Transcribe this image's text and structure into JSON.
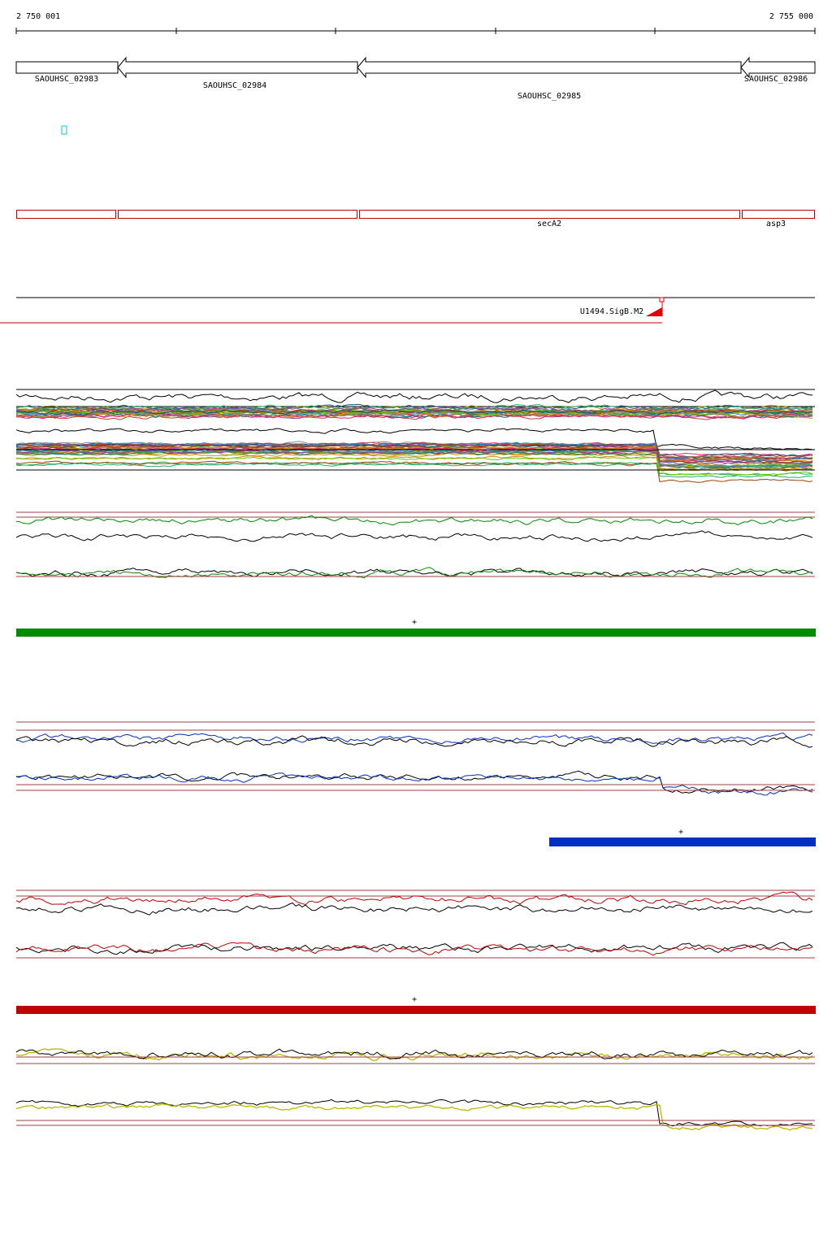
{
  "ruler": {
    "start": "2 750 001",
    "end": "2 755 000"
  },
  "genes": [
    {
      "label": "SAOUHSC_02983"
    },
    {
      "label": "SAOUHSC_02984"
    },
    {
      "label": "SAOUHSC_02985"
    },
    {
      "label": "SAOUHSC_02986"
    }
  ],
  "operons": [
    {
      "label": "secA2"
    },
    {
      "label": "asp3"
    }
  ],
  "promoter": {
    "label": "U1494.SigB.M2"
  },
  "strand_marks": [
    "+",
    "+",
    "+"
  ]
}
